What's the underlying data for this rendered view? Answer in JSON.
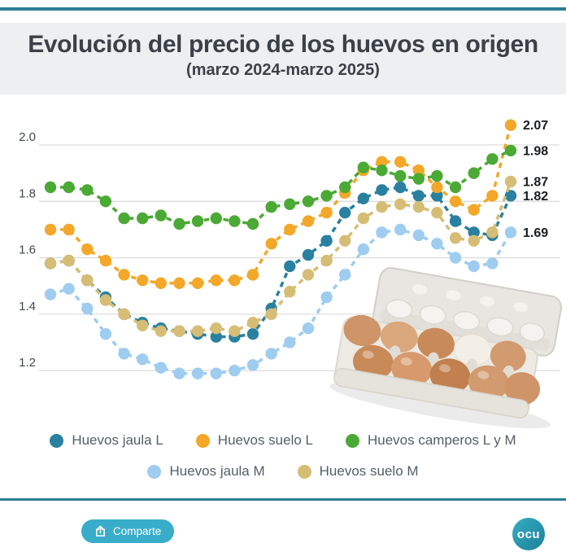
{
  "header": {
    "title": "Evolución del precio de los huevos en origen",
    "subtitle": "(marzo 2024-marzo 2025)"
  },
  "chart_data": {
    "type": "line",
    "title": "Evolución del precio de los huevos en origen (marzo 2024-marzo 2025)",
    "x_axis": {
      "labels_visible": false,
      "start": "marzo 2024",
      "end": "marzo 2025",
      "points": 26
    },
    "y_ticks": [
      "2.0",
      "1.8",
      "1.6",
      "1.4",
      "1.2"
    ],
    "ylim": [
      1.12,
      2.12
    ],
    "grid": true,
    "legend_position": "bottom",
    "series": [
      {
        "name": "Huevos jaula M",
        "color": "#9ecdf0",
        "end_label": "1.69",
        "values": [
          1.47,
          1.49,
          1.42,
          1.33,
          1.26,
          1.24,
          1.21,
          1.19,
          1.19,
          1.19,
          1.2,
          1.22,
          1.26,
          1.3,
          1.35,
          1.46,
          1.54,
          1.63,
          1.69,
          1.7,
          1.68,
          1.65,
          1.6,
          1.57,
          1.58,
          1.69
        ]
      },
      {
        "name": "Huevos jaula L",
        "color": "#2a80a0",
        "end_label": "1.82",
        "values": [
          1.58,
          1.59,
          1.52,
          1.46,
          1.4,
          1.37,
          1.35,
          1.34,
          1.33,
          1.32,
          1.32,
          1.33,
          1.42,
          1.57,
          1.61,
          1.66,
          1.76,
          1.81,
          1.84,
          1.85,
          1.82,
          1.82,
          1.73,
          1.69,
          1.68,
          1.82
        ]
      },
      {
        "name": "Huevos suelo M",
        "color": "#d6bd75",
        "end_label": "1.87",
        "values": [
          1.58,
          1.59,
          1.52,
          1.45,
          1.4,
          1.36,
          1.34,
          1.34,
          1.34,
          1.35,
          1.34,
          1.37,
          1.4,
          1.48,
          1.54,
          1.59,
          1.66,
          1.74,
          1.78,
          1.79,
          1.78,
          1.76,
          1.67,
          1.66,
          1.69,
          1.87
        ]
      },
      {
        "name": "Huevos suelo L",
        "color": "#f3a829",
        "end_label": "2.07",
        "values": [
          1.7,
          1.7,
          1.63,
          1.59,
          1.54,
          1.52,
          1.51,
          1.51,
          1.51,
          1.52,
          1.52,
          1.54,
          1.65,
          1.7,
          1.73,
          1.76,
          1.83,
          1.91,
          1.94,
          1.94,
          1.91,
          1.85,
          1.8,
          1.77,
          1.82,
          2.07
        ]
      },
      {
        "name": "Huevos camperos L y M",
        "color": "#4ba935",
        "end_label": "1.98",
        "values": [
          1.85,
          1.85,
          1.84,
          1.8,
          1.74,
          1.74,
          1.75,
          1.72,
          1.73,
          1.74,
          1.73,
          1.72,
          1.78,
          1.79,
          1.8,
          1.82,
          1.85,
          1.92,
          1.91,
          1.89,
          1.88,
          1.89,
          1.85,
          1.9,
          1.95,
          1.98
        ]
      }
    ]
  },
  "legend": {
    "rows": [
      [
        1,
        3,
        4
      ],
      [
        0,
        2
      ]
    ]
  },
  "footer": {
    "share_label": "Comparte",
    "logo_text": "ocu"
  },
  "decor": {
    "accent_teal": "#2b7d96",
    "button_color": "#38adc9",
    "header_bg": "#edeff1",
    "gridline_color": "#dedede"
  }
}
